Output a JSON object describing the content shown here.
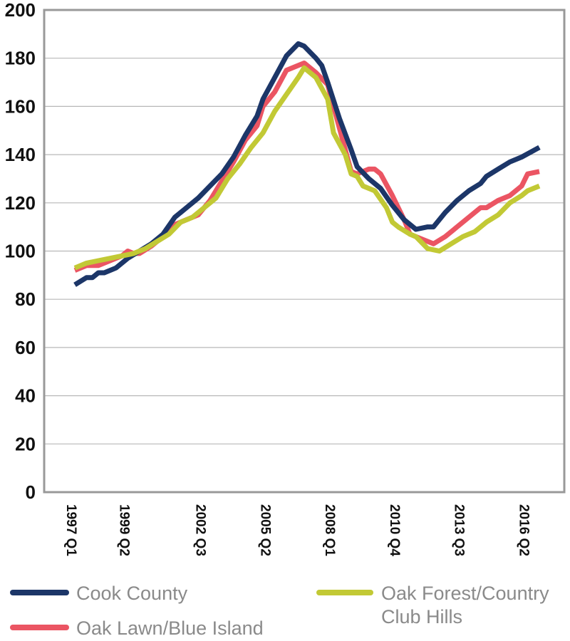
{
  "chart_data": {
    "type": "line",
    "ylim": [
      0,
      200
    ],
    "yticks": [
      0,
      20,
      40,
      60,
      80,
      100,
      120,
      140,
      160,
      180,
      200
    ],
    "grid": true,
    "x_start": "1997 Q1",
    "x_end": "2016 Q4",
    "xtick_labels": [
      {
        "label": "1997 Q1",
        "x": "1997 Q1"
      },
      {
        "label": "1999 Q2",
        "x": "1999 Q2"
      },
      {
        "label": "2002 Q3",
        "x": "2002 Q3"
      },
      {
        "label": "2005 Q2",
        "x": "2005 Q2"
      },
      {
        "label": "2008 Q1",
        "x": "2008 Q1"
      },
      {
        "label": "2010 Q4",
        "x": "2010 Q4"
      },
      {
        "label": "2013 Q3",
        "x": "2013 Q3"
      },
      {
        "label": "2016 Q2",
        "x": "2016 Q2"
      }
    ],
    "legend_position": "bottom",
    "series": [
      {
        "name": "Cook County",
        "color": "#1c3668",
        "points": [
          [
            "1997 Q1",
            86
          ],
          [
            "1997 Q3",
            89
          ],
          [
            "1997 Q4",
            89
          ],
          [
            "1998 Q1",
            91
          ],
          [
            "1998 Q2",
            91
          ],
          [
            "1998 Q4",
            93
          ],
          [
            "1999 Q2",
            97
          ],
          [
            "1999 Q4",
            100
          ],
          [
            "2000 Q2",
            103
          ],
          [
            "2000 Q4",
            107
          ],
          [
            "2001 Q2",
            114
          ],
          [
            "2001 Q4",
            118
          ],
          [
            "2002 Q2",
            122
          ],
          [
            "2002 Q4",
            127
          ],
          [
            "2003 Q2",
            132
          ],
          [
            "2003 Q4",
            139
          ],
          [
            "2004 Q2",
            148
          ],
          [
            "2004 Q4",
            156
          ],
          [
            "2005 Q1",
            163
          ],
          [
            "2005 Q3",
            172
          ],
          [
            "2006 Q1",
            181
          ],
          [
            "2006 Q3",
            186
          ],
          [
            "2006 Q4",
            185
          ],
          [
            "2007 Q2",
            180
          ],
          [
            "2007 Q3",
            177
          ],
          [
            "2007 Q4",
            170
          ],
          [
            "2008 Q2",
            155
          ],
          [
            "2008 Q4",
            142
          ],
          [
            "2009 Q1",
            135
          ],
          [
            "2009 Q3",
            130
          ],
          [
            "2010 Q1",
            126
          ],
          [
            "2010 Q3",
            119
          ],
          [
            "2011 Q1",
            113
          ],
          [
            "2011 Q3",
            109
          ],
          [
            "2012 Q1",
            110
          ],
          [
            "2012 Q2",
            110
          ],
          [
            "2012 Q4",
            116
          ],
          [
            "2013 Q2",
            121
          ],
          [
            "2013 Q4",
            125
          ],
          [
            "2014 Q2",
            128
          ],
          [
            "2014 Q3",
            131
          ],
          [
            "2015 Q1",
            134
          ],
          [
            "2015 Q3",
            137
          ],
          [
            "2016 Q1",
            139
          ],
          [
            "2016 Q4",
            143
          ]
        ]
      },
      {
        "name": "Oak Lawn/Blue Island",
        "color": "#eb5563",
        "points": [
          [
            "1997 Q1",
            92
          ],
          [
            "1997 Q3",
            94
          ],
          [
            "1998 Q1",
            94
          ],
          [
            "1998 Q3",
            96
          ],
          [
            "1999 Q1",
            98
          ],
          [
            "1999 Q2",
            100
          ],
          [
            "1999 Q3",
            99
          ],
          [
            "1999 Q4",
            99
          ],
          [
            "2000 Q2",
            102
          ],
          [
            "2000 Q4",
            106
          ],
          [
            "2001 Q2",
            111
          ],
          [
            "2001 Q4",
            113
          ],
          [
            "2002 Q2",
            115
          ],
          [
            "2002 Q4",
            121
          ],
          [
            "2003 Q2",
            129
          ],
          [
            "2003 Q4",
            137
          ],
          [
            "2004 Q2",
            146
          ],
          [
            "2004 Q4",
            152
          ],
          [
            "2005 Q1",
            160
          ],
          [
            "2005 Q3",
            166
          ],
          [
            "2006 Q1",
            175
          ],
          [
            "2006 Q3",
            177
          ],
          [
            "2006 Q4",
            178
          ],
          [
            "2007 Q2",
            174
          ],
          [
            "2007 Q4",
            169
          ],
          [
            "2008 Q2",
            151
          ],
          [
            "2008 Q4",
            133
          ],
          [
            "2009 Q1",
            132
          ],
          [
            "2009 Q3",
            134
          ],
          [
            "2009 Q4",
            134
          ],
          [
            "2010 Q1",
            132
          ],
          [
            "2010 Q3",
            123
          ],
          [
            "2011 Q1",
            113
          ],
          [
            "2011 Q2",
            107
          ],
          [
            "2011 Q4",
            105
          ],
          [
            "2012 Q2",
            103
          ],
          [
            "2012 Q4",
            106
          ],
          [
            "2013 Q2",
            110
          ],
          [
            "2013 Q4",
            114
          ],
          [
            "2014 Q2",
            118
          ],
          [
            "2014 Q3",
            118
          ],
          [
            "2015 Q1",
            121
          ],
          [
            "2015 Q3",
            123
          ],
          [
            "2016 Q1",
            127
          ],
          [
            "2016 Q2",
            132
          ],
          [
            "2016 Q4",
            133
          ]
        ]
      },
      {
        "name": "Oak Forest/Country Club Hills",
        "color": "#c2c935",
        "points": [
          [
            "1997 Q1",
            93
          ],
          [
            "1997 Q3",
            95
          ],
          [
            "1998 Q1",
            96
          ],
          [
            "1998 Q3",
            97
          ],
          [
            "1999 Q1",
            98
          ],
          [
            "1999 Q3",
            99
          ],
          [
            "2000 Q1",
            101
          ],
          [
            "2000 Q3",
            104
          ],
          [
            "2001 Q1",
            107
          ],
          [
            "2001 Q3",
            112
          ],
          [
            "2002 Q1",
            114
          ],
          [
            "2002 Q3",
            118
          ],
          [
            "2003 Q1",
            122
          ],
          [
            "2003 Q3",
            130
          ],
          [
            "2004 Q1",
            136
          ],
          [
            "2004 Q3",
            143
          ],
          [
            "2005 Q1",
            149
          ],
          [
            "2005 Q3",
            158
          ],
          [
            "2006 Q1",
            165
          ],
          [
            "2006 Q3",
            172
          ],
          [
            "2006 Q4",
            176
          ],
          [
            "2007 Q2",
            172
          ],
          [
            "2007 Q4",
            163
          ],
          [
            "2008 Q1",
            149
          ],
          [
            "2008 Q3",
            140
          ],
          [
            "2008 Q4",
            132
          ],
          [
            "2009 Q1",
            131
          ],
          [
            "2009 Q2",
            127
          ],
          [
            "2009 Q4",
            125
          ],
          [
            "2010 Q2",
            118
          ],
          [
            "2010 Q3",
            112
          ],
          [
            "2010 Q4",
            110
          ],
          [
            "2011 Q2",
            107
          ],
          [
            "2011 Q3",
            106
          ],
          [
            "2012 Q1",
            101
          ],
          [
            "2012 Q3",
            100
          ],
          [
            "2013 Q1",
            103
          ],
          [
            "2013 Q3",
            106
          ],
          [
            "2014 Q1",
            108
          ],
          [
            "2014 Q3",
            112
          ],
          [
            "2015 Q1",
            115
          ],
          [
            "2015 Q3",
            120
          ],
          [
            "2016 Q1",
            123
          ],
          [
            "2016 Q2",
            125
          ],
          [
            "2016 Q4",
            127
          ]
        ]
      }
    ]
  }
}
